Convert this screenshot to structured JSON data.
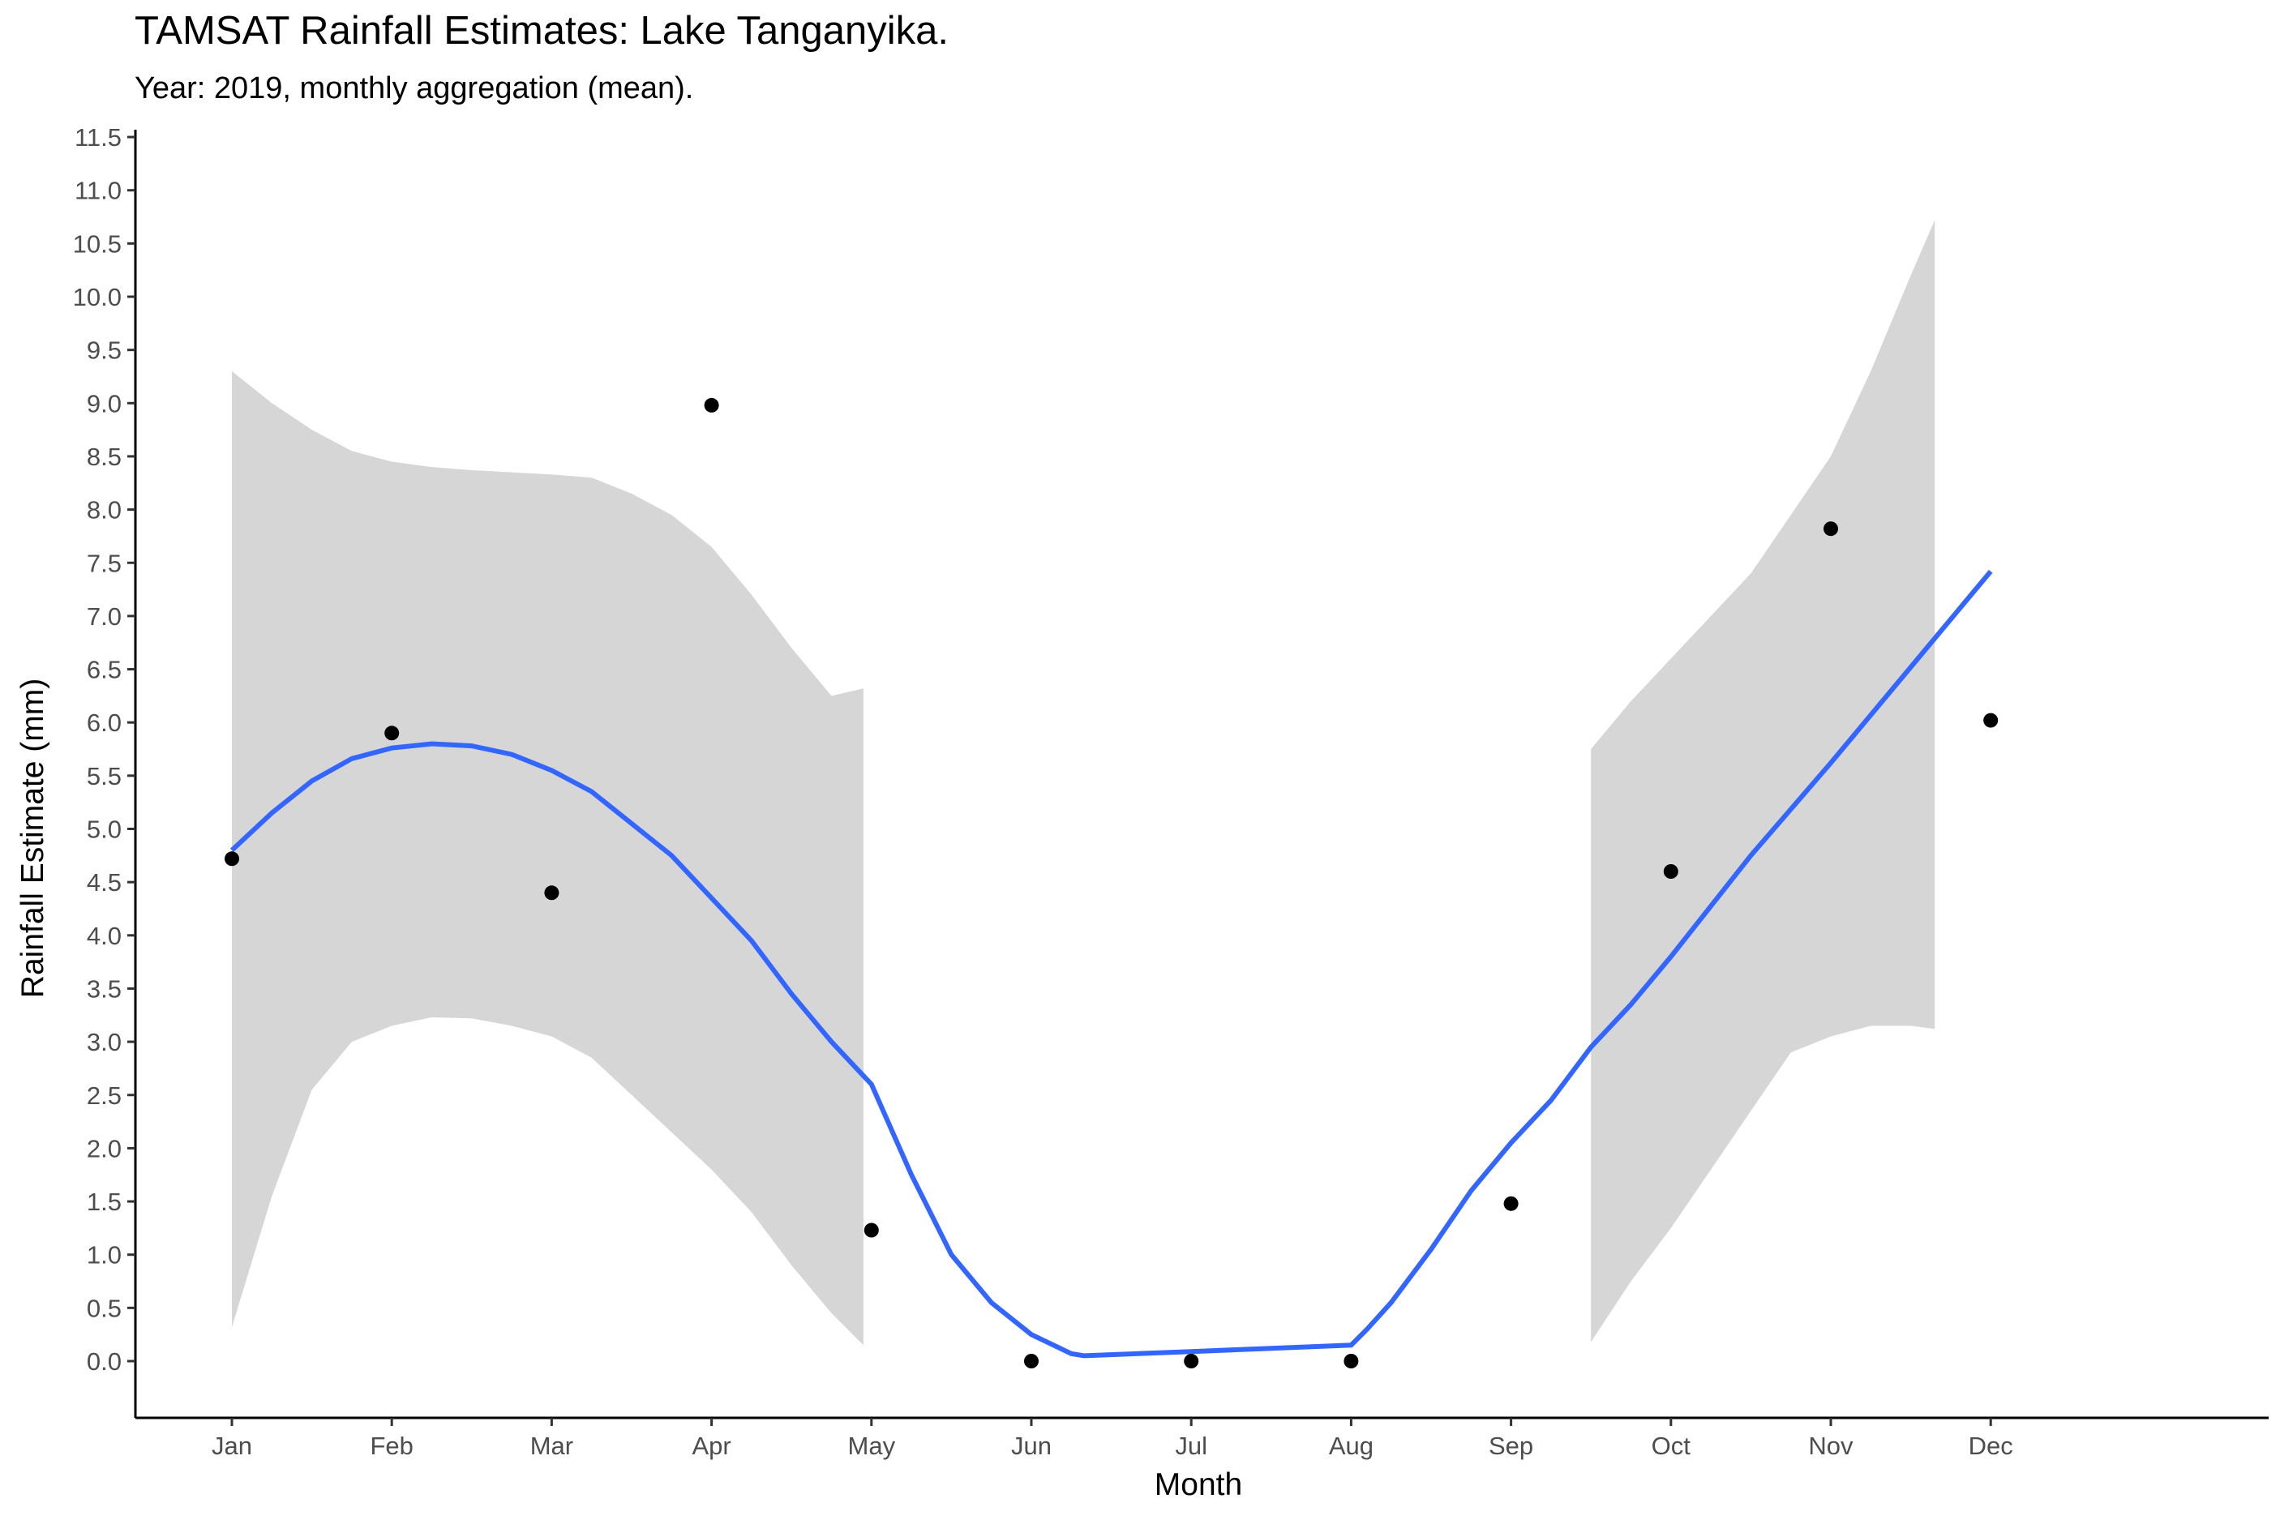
{
  "chart_data": {
    "type": "scatter",
    "title": "TAMSAT Rainfall Estimates: Lake Tanganyika.",
    "subtitle": "Year: 2019, monthly aggregation (mean).",
    "xlabel": "Month",
    "ylabel": "Rainfall Estimate (mm)",
    "categories": [
      "Jan",
      "Feb",
      "Mar",
      "Apr",
      "May",
      "Jun",
      "Jul",
      "Aug",
      "Sep",
      "Oct",
      "Nov",
      "Dec"
    ],
    "ylim": [
      -0.55,
      11.6
    ],
    "yticks": [
      "0.0",
      "0.5",
      "1.0",
      "1.5",
      "2.0",
      "2.5",
      "3.0",
      "3.5",
      "4.0",
      "4.5",
      "5.0",
      "5.5",
      "6.0",
      "6.5",
      "7.0",
      "7.5",
      "8.0",
      "8.5",
      "9.0",
      "9.5",
      "10.0",
      "10.5",
      "11.0",
      "11.5"
    ],
    "grid": false,
    "series": [
      {
        "type": "points",
        "x": [
          1,
          2,
          3,
          4,
          5,
          6,
          7,
          8,
          9,
          10,
          11,
          12
        ],
        "values": [
          4.72,
          5.9,
          4.4,
          8.98,
          1.23,
          0.0,
          0.0,
          0.0,
          1.48,
          4.6,
          7.82,
          6.02
        ],
        "color": "#000000"
      },
      {
        "type": "smooth",
        "color": "#3366ff",
        "x": [
          1.0,
          1.25,
          1.5,
          1.75,
          2.0,
          2.25,
          2.5,
          2.75,
          3.0,
          3.25,
          3.5,
          3.75,
          4.0,
          4.25,
          4.5,
          4.75,
          5.0,
          5.25,
          5.5,
          5.75,
          6.0,
          6.25,
          6.33,
          7.0,
          7.5,
          8.0,
          8.1,
          8.25,
          8.5,
          8.75,
          9.0,
          9.25,
          9.5,
          9.75,
          10.0,
          10.5,
          11.0,
          11.5,
          12.0
        ],
        "values": [
          4.8,
          5.15,
          5.45,
          5.66,
          5.76,
          5.8,
          5.78,
          5.7,
          5.55,
          5.35,
          5.05,
          4.75,
          4.35,
          3.95,
          3.45,
          3.0,
          2.6,
          1.75,
          1.0,
          0.55,
          0.25,
          0.07,
          0.05,
          0.09,
          0.12,
          0.15,
          0.3,
          0.55,
          1.05,
          1.6,
          2.05,
          2.45,
          2.95,
          3.35,
          3.8,
          4.75,
          5.62,
          6.52,
          7.42
        ]
      },
      {
        "type": "ribbon",
        "color": "#d6d6d6",
        "segments": [
          {
            "x": [
              1.0,
              1.25,
              1.5,
              1.75,
              2.0,
              2.25,
              2.5,
              2.75,
              3.0,
              3.25,
              3.5,
              3.75,
              4.0,
              4.25,
              4.5,
              4.75,
              4.95
            ],
            "upper": [
              9.3,
              9.0,
              8.75,
              8.55,
              8.45,
              8.4,
              8.37,
              8.35,
              8.33,
              8.3,
              8.15,
              7.95,
              7.65,
              7.2,
              6.7,
              6.25,
              6.32
            ],
            "lower": [
              0.32,
              1.55,
              2.55,
              3.0,
              3.15,
              3.23,
              3.22,
              3.15,
              3.05,
              2.85,
              2.5,
              2.15,
              1.8,
              1.4,
              0.9,
              0.45,
              0.15
            ]
          },
          {
            "x": [
              9.5,
              9.75,
              10.0,
              10.25,
              10.5,
              10.75,
              11.0,
              11.25,
              11.5,
              11.65
            ],
            "upper": [
              5.75,
              6.2,
              6.6,
              7.0,
              7.4,
              7.95,
              8.5,
              9.3,
              10.2,
              10.72
            ],
            "lower": [
              0.18,
              0.75,
              1.25,
              1.8,
              2.35,
              2.9,
              3.05,
              3.15,
              3.15,
              3.12
            ]
          }
        ]
      }
    ]
  }
}
